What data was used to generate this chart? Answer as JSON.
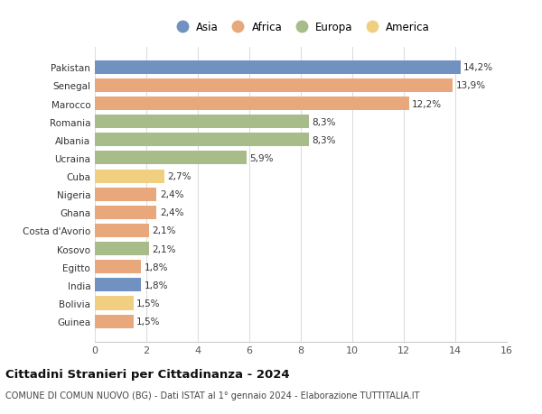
{
  "categories": [
    "Guinea",
    "Bolivia",
    "India",
    "Egitto",
    "Kosovo",
    "Costa d'Avorio",
    "Ghana",
    "Nigeria",
    "Cuba",
    "Ucraina",
    "Albania",
    "Romania",
    "Marocco",
    "Senegal",
    "Pakistan"
  ],
  "values": [
    1.5,
    1.5,
    1.8,
    1.8,
    2.1,
    2.1,
    2.4,
    2.4,
    2.7,
    5.9,
    8.3,
    8.3,
    12.2,
    13.9,
    14.2
  ],
  "labels": [
    "1,5%",
    "1,5%",
    "1,8%",
    "1,8%",
    "2,1%",
    "2,1%",
    "2,4%",
    "2,4%",
    "2,7%",
    "5,9%",
    "8,3%",
    "8,3%",
    "12,2%",
    "13,9%",
    "14,2%"
  ],
  "continent": [
    "Africa",
    "America",
    "Asia",
    "Africa",
    "Europa",
    "Africa",
    "Africa",
    "Africa",
    "America",
    "Europa",
    "Europa",
    "Europa",
    "Africa",
    "Africa",
    "Asia"
  ],
  "colors": {
    "Asia": "#7191c0",
    "Africa": "#e8a87c",
    "Europa": "#a8bc8a",
    "America": "#f0d080"
  },
  "legend_colors": {
    "Asia": "#7191c0",
    "Africa": "#e8a87c",
    "Europa": "#a8bc8a",
    "America": "#f0d080"
  },
  "title": "Cittadini Stranieri per Cittadinanza - 2024",
  "subtitle": "COMUNE DI COMUN NUOVO (BG) - Dati ISTAT al 1° gennaio 2024 - Elaborazione TUTTITALIA.IT",
  "xlim": [
    0,
    16
  ],
  "xticks": [
    0,
    2,
    4,
    6,
    8,
    10,
    12,
    14,
    16
  ],
  "background_color": "#ffffff",
  "grid_color": "#dddddd",
  "bar_height": 0.75
}
